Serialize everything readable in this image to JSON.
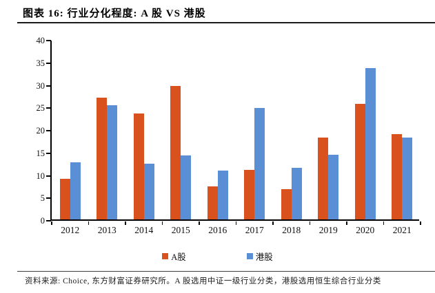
{
  "header": {
    "title": "图表 16: 行业分化程度: A 股 VS 港股"
  },
  "chart_data": {
    "type": "bar",
    "title": "图表 16: 行业分化程度: A 股 VS 港股",
    "categories": [
      "2012",
      "2013",
      "2014",
      "2015",
      "2016",
      "2017",
      "2018",
      "2019",
      "2020",
      "2021"
    ],
    "series": [
      {
        "name": "A股",
        "color": "#D9521E",
        "values": [
          9.0,
          27.1,
          23.5,
          29.6,
          7.3,
          11.0,
          6.8,
          18.1,
          25.7,
          19.0
        ]
      },
      {
        "name": "港股",
        "color": "#5B8FD5",
        "values": [
          12.7,
          25.3,
          12.3,
          14.2,
          10.8,
          24.7,
          11.4,
          14.3,
          33.6,
          18.1
        ]
      }
    ],
    "xlabel": "",
    "ylabel": "",
    "ylim": [
      0,
      40
    ],
    "ytick_step": 5,
    "grid": false,
    "legend_position": "bottom"
  },
  "footer": {
    "source_note": "资料来源: Choice, 东方财富证券研究所。A 股选用中证一级行业分类，港股选用恒生综合行业分类"
  }
}
